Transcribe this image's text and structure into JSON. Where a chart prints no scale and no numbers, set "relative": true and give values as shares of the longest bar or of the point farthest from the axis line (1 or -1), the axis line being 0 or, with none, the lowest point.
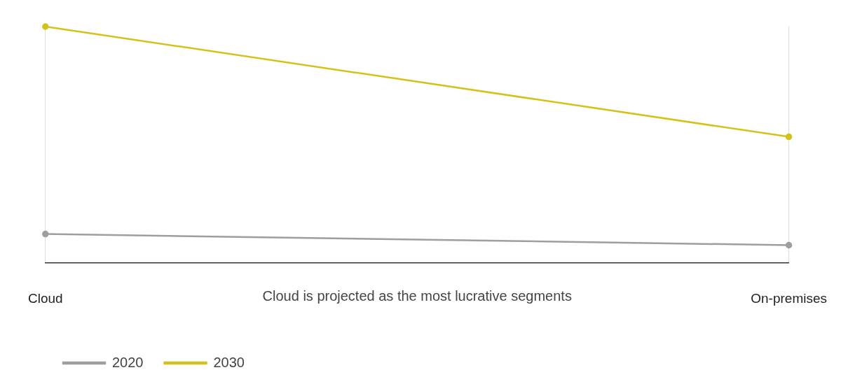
{
  "chart_data": {
    "type": "line",
    "relative": true,
    "categories": [
      "Cloud",
      "On-premises"
    ],
    "series": [
      {
        "name": "2020",
        "color": "#9e9e9e",
        "values": [
          0.123,
          0.076
        ]
      },
      {
        "name": "2030",
        "color": "#d4c21a",
        "values": [
          1,
          0.534
        ]
      }
    ],
    "annotations": [
      "Cloud is projected as the most lucrative segments"
    ],
    "grid": "x",
    "legend": "bottom left",
    "marker": "circle",
    "line_style": "solid"
  }
}
